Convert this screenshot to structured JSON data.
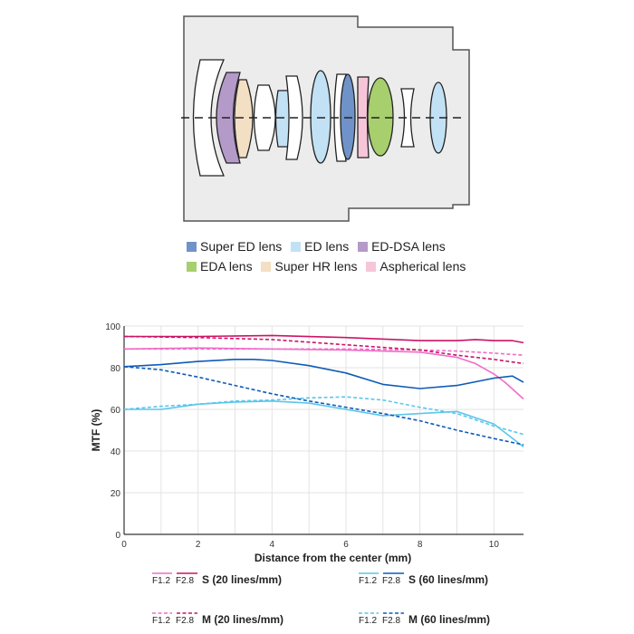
{
  "diagram": {
    "legend": [
      {
        "label": "Super ED lens",
        "color": "#6f93c8"
      },
      {
        "label": "ED lens",
        "color": "#c2e1f5"
      },
      {
        "label": "ED-DSA lens",
        "color": "#b49ac9"
      },
      {
        "label": "EDA lens",
        "color": "#a7cf6d"
      },
      {
        "label": "Super HR lens",
        "color": "#f3dfc4"
      },
      {
        "label": "Aspherical lens",
        "color": "#f6c6d8"
      }
    ]
  },
  "chart_data": {
    "type": "line",
    "xlabel": "Distance from the center (mm)",
    "ylabel": "MTF (%)",
    "xlim": [
      0,
      10.8
    ],
    "ylim": [
      0,
      100
    ],
    "xticks": [
      0,
      2,
      4,
      6,
      8,
      10
    ],
    "yticks": [
      0,
      20,
      40,
      60,
      80,
      100
    ],
    "grid": true,
    "series": [
      {
        "name": "F1.2 S (20 lines/mm)",
        "color": "#f06cc8",
        "dash": false,
        "x": [
          0,
          2,
          4,
          6,
          8,
          9,
          9.5,
          10,
          10.3,
          10.8
        ],
        "y": [
          89,
          89.5,
          89,
          88.5,
          87.5,
          85,
          82,
          77,
          73,
          65
        ]
      },
      {
        "name": "F2.8 S (20 lines/mm)",
        "color": "#cc1466",
        "dash": false,
        "x": [
          0,
          2,
          4,
          6,
          8,
          9,
          9.5,
          10,
          10.5,
          10.8
        ],
        "y": [
          95,
          95,
          95.5,
          94.5,
          93,
          93,
          93.5,
          93,
          93,
          92
        ]
      },
      {
        "name": "F1.2 M (20 lines/mm)",
        "color": "#f06cc8",
        "dash": true,
        "x": [
          0,
          2,
          4,
          6,
          8,
          9,
          10,
          10.8
        ],
        "y": [
          89,
          89,
          89,
          89,
          88.5,
          88,
          87,
          86
        ]
      },
      {
        "name": "F2.8 M (20 lines/mm)",
        "color": "#cc1466",
        "dash": true,
        "x": [
          0,
          2,
          4,
          6,
          8,
          9,
          10,
          10.8
        ],
        "y": [
          95,
          94.5,
          93.5,
          91,
          88.5,
          86,
          84,
          82
        ]
      },
      {
        "name": "F1.2 S (60 lines/mm)",
        "color": "#5ac6ea",
        "dash": false,
        "x": [
          0,
          1,
          2,
          3,
          4,
          5,
          6,
          7,
          8,
          9,
          10,
          10.8
        ],
        "y": [
          60,
          60,
          62.5,
          63.5,
          64,
          63,
          60,
          57,
          58,
          59,
          53,
          42
        ]
      },
      {
        "name": "F2.8 S (60 lines/mm)",
        "color": "#0f5bb8",
        "dash": false,
        "x": [
          0,
          1,
          2,
          3,
          3.5,
          4,
          5,
          6,
          7,
          8,
          9,
          10,
          10.5,
          10.8
        ],
        "y": [
          80.5,
          81.5,
          83,
          84,
          84,
          83.5,
          81,
          77.5,
          72,
          70,
          71.5,
          75,
          76,
          73
        ]
      },
      {
        "name": "F1.2 M (60 lines/mm)",
        "color": "#5ac6ea",
        "dash": true,
        "x": [
          0,
          1,
          2,
          3,
          4,
          5,
          6,
          7,
          8,
          9,
          10,
          10.8
        ],
        "y": [
          60,
          61.5,
          62.5,
          64,
          64.5,
          65.5,
          66,
          64.5,
          61,
          58,
          52,
          48
        ]
      },
      {
        "name": "F2.8 M (60 lines/mm)",
        "color": "#0f5bb8",
        "dash": true,
        "x": [
          0,
          1,
          2,
          3,
          4,
          5,
          6,
          7,
          8,
          9,
          10,
          10.8
        ],
        "y": [
          80.5,
          79,
          75.5,
          71.5,
          67.5,
          64,
          61,
          58,
          54.5,
          50,
          46,
          43
        ]
      }
    ],
    "key": [
      {
        "f1": "F1.2",
        "f2": "F2.8",
        "label": "S (20 lines/mm)",
        "c1": "#f06cc8",
        "c2": "#cc1466",
        "dash": false
      },
      {
        "f1": "F1.2",
        "f2": "F2.8",
        "label": "S (60 lines/mm)",
        "c1": "#5ac6ea",
        "c2": "#0f5bb8",
        "dash": false
      },
      {
        "f1": "F1.2",
        "f2": "F2.8",
        "label": "M (20 lines/mm)",
        "c1": "#f06cc8",
        "c2": "#cc1466",
        "dash": true
      },
      {
        "f1": "F1.2",
        "f2": "F2.8",
        "label": "M (60 lines/mm)",
        "c1": "#5ac6ea",
        "c2": "#0f5bb8",
        "dash": true
      }
    ]
  }
}
